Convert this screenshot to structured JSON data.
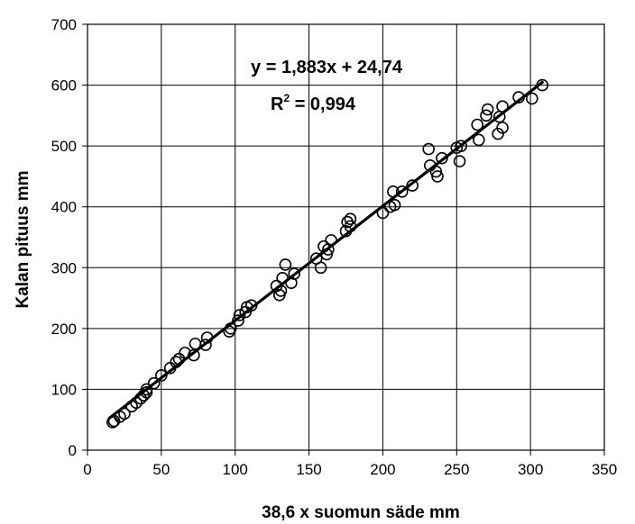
{
  "chart_data": {
    "type": "scatter",
    "xlabel": "38,6 x suomun säde mm",
    "ylabel": "Kalan pituus mm",
    "xlim": [
      0,
      350
    ],
    "ylim": [
      0,
      700
    ],
    "xticks": [
      0,
      50,
      100,
      150,
      200,
      250,
      300,
      350
    ],
    "yticks": [
      0,
      100,
      200,
      300,
      400,
      500,
      600,
      700
    ],
    "grid": true,
    "marker": "open-circle",
    "annotation": {
      "equation": "y = 1,883x + 24,74",
      "r2_prefix": "R",
      "r2_exp": "2",
      "r2_value": " = 0,994"
    },
    "trendline": {
      "slope": 1.883,
      "intercept": 24.74,
      "x_range": [
        15,
        308
      ]
    },
    "points": [
      [
        17,
        46
      ],
      [
        18,
        48
      ],
      [
        22,
        55
      ],
      [
        25,
        60
      ],
      [
        30,
        72
      ],
      [
        33,
        78
      ],
      [
        36,
        85
      ],
      [
        38,
        90
      ],
      [
        40,
        95
      ],
      [
        40,
        100
      ],
      [
        45,
        110
      ],
      [
        50,
        123
      ],
      [
        56,
        135
      ],
      [
        60,
        145
      ],
      [
        62,
        150
      ],
      [
        66,
        160
      ],
      [
        72,
        156
      ],
      [
        73,
        175
      ],
      [
        80,
        173
      ],
      [
        81,
        185
      ],
      [
        96,
        195
      ],
      [
        97,
        200
      ],
      [
        102,
        213
      ],
      [
        103,
        222
      ],
      [
        107,
        227
      ],
      [
        108,
        235
      ],
      [
        111,
        238
      ],
      [
        128,
        270
      ],
      [
        130,
        255
      ],
      [
        131,
        262
      ],
      [
        132,
        283
      ],
      [
        134,
        305
      ],
      [
        138,
        275
      ],
      [
        140,
        290
      ],
      [
        155,
        315
      ],
      [
        158,
        300
      ],
      [
        160,
        335
      ],
      [
        162,
        322
      ],
      [
        163,
        330
      ],
      [
        165,
        345
      ],
      [
        175,
        360
      ],
      [
        176,
        375
      ],
      [
        178,
        368
      ],
      [
        178,
        380
      ],
      [
        200,
        390
      ],
      [
        205,
        400
      ],
      [
        207,
        425
      ],
      [
        208,
        403
      ],
      [
        213,
        425
      ],
      [
        220,
        435
      ],
      [
        231,
        495
      ],
      [
        232,
        468
      ],
      [
        236,
        458
      ],
      [
        237,
        450
      ],
      [
        240,
        480
      ],
      [
        250,
        497
      ],
      [
        252,
        475
      ],
      [
        253,
        500
      ],
      [
        264,
        535
      ],
      [
        265,
        510
      ],
      [
        270,
        550
      ],
      [
        271,
        560
      ],
      [
        278,
        520
      ],
      [
        279,
        548
      ],
      [
        281,
        530
      ],
      [
        281,
        565
      ],
      [
        292,
        580
      ],
      [
        301,
        578
      ],
      [
        308,
        600
      ]
    ]
  }
}
